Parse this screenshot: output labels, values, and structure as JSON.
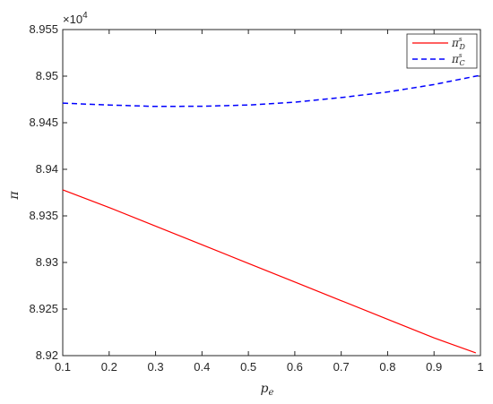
{
  "chart_data": {
    "type": "line",
    "title": "",
    "xlabel": "p",
    "xlabel_sub": "e",
    "ylabel": "π",
    "y_exponent_base": "×10",
    "y_exponent_power": "4",
    "xlim": [
      0.1,
      1.0
    ],
    "ylim": [
      8.92,
      8.955
    ],
    "x_ticks": [
      0.1,
      0.2,
      0.3,
      0.4,
      0.5,
      0.6,
      0.7,
      0.8,
      0.9,
      1.0
    ],
    "x_tick_labels": [
      "0.1",
      "0.2",
      "0.3",
      "0.4",
      "0.5",
      "0.6",
      "0.7",
      "0.8",
      "0.9",
      "1"
    ],
    "y_ticks": [
      8.92,
      8.925,
      8.93,
      8.935,
      8.94,
      8.945,
      8.95,
      8.955
    ],
    "y_tick_labels": [
      "8.92",
      "8.925",
      "8.93",
      "8.935",
      "8.94",
      "8.945",
      "8.95",
      "8.955"
    ],
    "grid": false,
    "legend_position": "top-right",
    "series": [
      {
        "name": "π",
        "name_sub": "D",
        "name_sup": "s",
        "style": "solid",
        "color": "#ff0000",
        "x": [
          0.1,
          0.2,
          0.3,
          0.4,
          0.5,
          0.6,
          0.7,
          0.8,
          0.9,
          0.99
        ],
        "y": [
          8.9378,
          8.9359,
          8.9339,
          8.9319,
          8.9299,
          8.9279,
          8.9259,
          8.9239,
          8.9219,
          8.9203
        ]
      },
      {
        "name": "π",
        "name_sub": "C",
        "name_sup": "s",
        "style": "dashed",
        "color": "#0000ff",
        "x": [
          0.1,
          0.2,
          0.3,
          0.4,
          0.5,
          0.6,
          0.7,
          0.8,
          0.9,
          1.0
        ],
        "y": [
          8.9471,
          8.9469,
          8.94675,
          8.94677,
          8.9469,
          8.9472,
          8.9477,
          8.9483,
          8.9491,
          8.9501
        ]
      }
    ]
  }
}
